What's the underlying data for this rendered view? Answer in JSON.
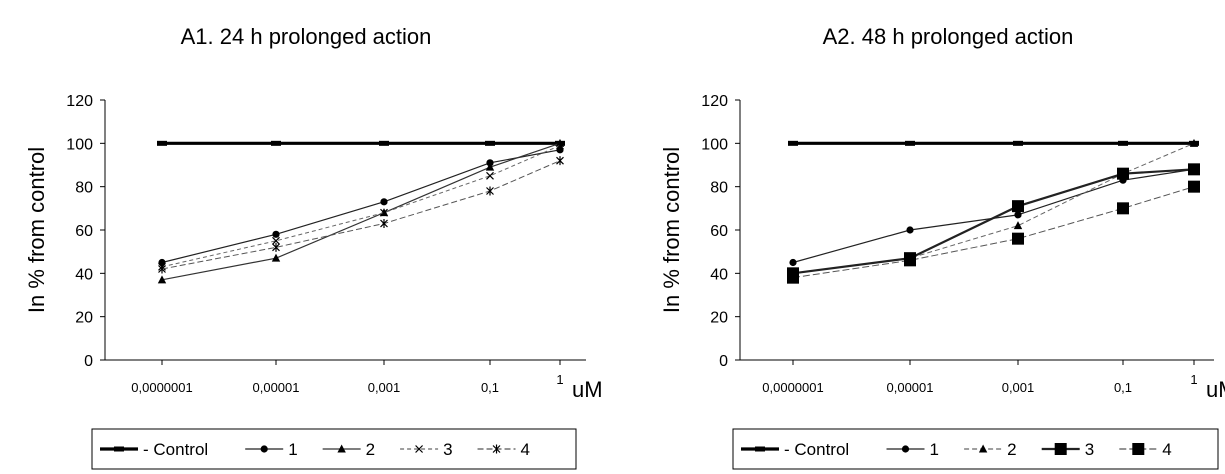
{
  "chart_data": [
    {
      "type": "line",
      "title": "A1. 24 h prolonged action",
      "ylabel": "In % from control",
      "xunit": "uM",
      "ylim": [
        0,
        120
      ],
      "yticks": [
        "0",
        "20",
        "40",
        "60",
        "80",
        "100",
        "120"
      ],
      "categories": [
        "0,0000001",
        "0,00001",
        "0,001",
        "0,1",
        "1"
      ],
      "grid": false,
      "legend_position": "bottom",
      "series": [
        {
          "name": "- Control",
          "marker": "dash",
          "values": [
            100,
            100,
            100,
            100,
            100
          ]
        },
        {
          "name": "1",
          "marker": "circle",
          "values": [
            45,
            58,
            73,
            91,
            97
          ]
        },
        {
          "name": "2",
          "marker": "triangle",
          "values": [
            37,
            47,
            68,
            89,
            100
          ]
        },
        {
          "name": "3",
          "marker": "x",
          "values": [
            43,
            55,
            68,
            85,
            99
          ]
        },
        {
          "name": "4",
          "marker": "star",
          "values": [
            42,
            52,
            63,
            78,
            92
          ]
        }
      ]
    },
    {
      "type": "line",
      "title": "A2. 48 h prolonged action",
      "ylabel": "In % from control",
      "xunit": "uM",
      "ylim": [
        0,
        120
      ],
      "yticks": [
        "0",
        "20",
        "40",
        "60",
        "80",
        "100",
        "120"
      ],
      "categories": [
        "0,0000001",
        "0,00001",
        "0,001",
        "0,1",
        "1"
      ],
      "grid": false,
      "legend_position": "bottom",
      "series": [
        {
          "name": "- Control",
          "marker": "dash",
          "values": [
            100,
            100,
            100,
            100,
            100
          ]
        },
        {
          "name": "1",
          "marker": "circle",
          "values": [
            45,
            60,
            67,
            83,
            88
          ]
        },
        {
          "name": "2",
          "marker": "triangle",
          "values": [
            40,
            47,
            62,
            86,
            100
          ]
        },
        {
          "name": "3",
          "marker": "square",
          "values": [
            40,
            47,
            71,
            86,
            88
          ]
        },
        {
          "name": "4",
          "marker": "square",
          "values": [
            38,
            46,
            56,
            70,
            80
          ]
        }
      ]
    }
  ]
}
